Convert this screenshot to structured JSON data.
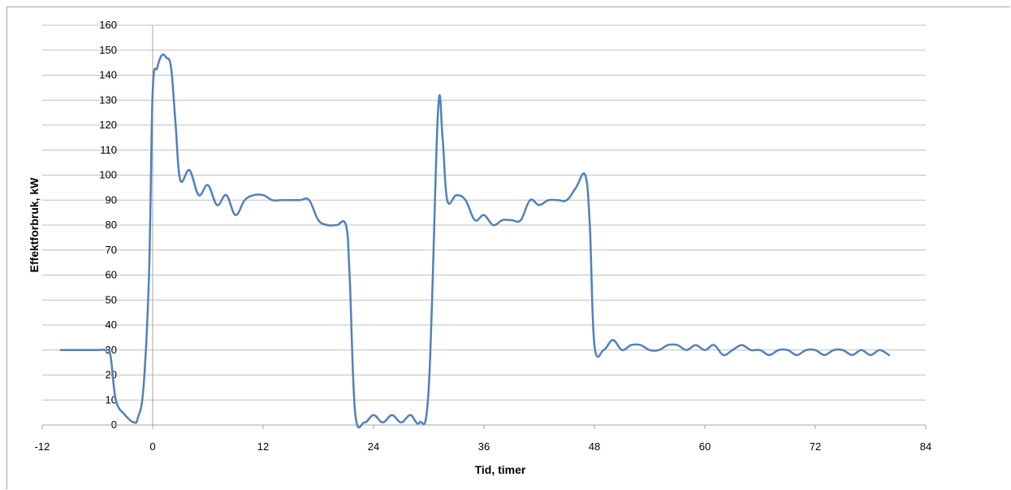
{
  "chart_data": {
    "type": "line",
    "xlabel": "Tid, timer",
    "ylabel": "Effektforbruk, kW",
    "xlim": [
      -12,
      84
    ],
    "ylim": [
      0,
      160
    ],
    "x_ticks": [
      -12,
      0,
      12,
      24,
      36,
      48,
      60,
      72,
      84
    ],
    "y_ticks": [
      0,
      10,
      20,
      30,
      40,
      50,
      60,
      70,
      80,
      90,
      100,
      110,
      120,
      130,
      140,
      150,
      160
    ],
    "grid": true,
    "line_color": "#4f81bd",
    "series": [
      {
        "x": [
          -10,
          -8,
          -6,
          -5.2,
          -4.6,
          -4,
          -3,
          -2,
          -1.6,
          -1,
          -0.4,
          0,
          0.5,
          1,
          1.5,
          2,
          2.5,
          3,
          4,
          5,
          6,
          7,
          8,
          9,
          10,
          11,
          12,
          13,
          14,
          15,
          16,
          17,
          18,
          19,
          20,
          21,
          21.4,
          22,
          23,
          24,
          25,
          26,
          27,
          28,
          29,
          30,
          31,
          31.5,
          32,
          33,
          34,
          35,
          36,
          37,
          38,
          39,
          40,
          41,
          42,
          43,
          44,
          45,
          46,
          47,
          47.5,
          48,
          49,
          50,
          51,
          52,
          53,
          54,
          55,
          56,
          57,
          58,
          59,
          60,
          61,
          62,
          63,
          64,
          65,
          66,
          67,
          68,
          69,
          70,
          71,
          72,
          73,
          74,
          75,
          76,
          77,
          78,
          79,
          80
        ],
        "y": [
          30,
          30,
          30,
          30,
          28,
          10,
          4,
          1,
          3,
          15,
          60,
          133,
          143,
          148,
          147,
          143,
          120,
          98,
          102,
          92,
          96,
          88,
          92,
          84,
          90,
          92,
          92,
          90,
          90,
          90,
          90,
          90,
          82,
          80,
          80,
          80,
          60,
          5,
          1,
          4,
          1,
          4,
          1,
          4,
          1,
          15,
          125,
          115,
          90,
          92,
          90,
          82,
          84,
          80,
          82,
          82,
          82,
          90,
          88,
          90,
          90,
          90,
          95,
          100,
          80,
          32,
          30,
          34,
          30,
          32,
          32,
          30,
          30,
          32,
          32,
          30,
          32,
          30,
          32,
          28,
          30,
          32,
          30,
          30,
          28,
          30,
          30,
          28,
          30,
          30,
          28,
          30,
          30,
          28,
          30,
          28,
          30,
          28
        ]
      }
    ]
  }
}
